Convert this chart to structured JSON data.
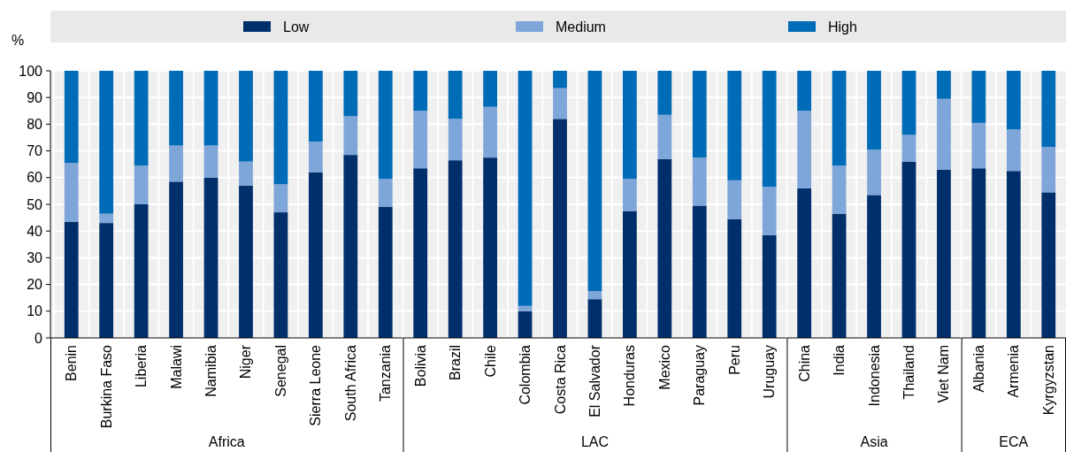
{
  "chart_data": [
    {
      "type": "bar",
      "stacked": true,
      "ylabel": "%",
      "xlabel": "Africa",
      "ylim": [
        0,
        100
      ],
      "yticks": [
        0,
        10,
        20,
        30,
        40,
        50,
        60,
        70,
        80,
        90,
        100
      ],
      "grid": true,
      "legend": "top",
      "categories": [
        "Benin",
        "Burkina Faso",
        "Liberia",
        "Malawi",
        "Namibia",
        "Niger",
        "Senegal",
        "Sierra Leone",
        "South Africa",
        "Tanzania"
      ],
      "series": [
        {
          "name": "Low",
          "color": "#002f6c",
          "values": [
            43.5,
            43,
            50,
            58.5,
            60,
            57,
            47,
            62,
            68.5,
            49
          ]
        },
        {
          "name": "Medium",
          "color": "#7fa6d9",
          "values": [
            22,
            3.5,
            14.5,
            13.5,
            12,
            9,
            10.5,
            11.5,
            14.5,
            10.5
          ]
        },
        {
          "name": "High",
          "color": "#006bb6",
          "values": [
            34.5,
            53.5,
            35.5,
            28,
            28,
            34,
            42.5,
            26.5,
            17,
            40.5
          ]
        }
      ]
    },
    {
      "type": "bar",
      "stacked": true,
      "xlabel": "LAC",
      "ylim": [
        0,
        100
      ],
      "yticks": [
        0,
        10,
        20,
        30,
        40,
        50,
        60,
        70,
        80,
        90,
        100
      ],
      "grid": true,
      "tick_labels": "x",
      "categories": [
        "Bolivia",
        "Brazil",
        "Chile",
        "Colombia",
        "Costa Rica",
        "El Salvador",
        "Honduras",
        "Mexico",
        "Paraguay",
        "Peru",
        "Uruguay"
      ],
      "series": [
        {
          "color": "#002f6c",
          "values": [
            63.5,
            66.5,
            67.5,
            10,
            82,
            14.5,
            47.5,
            67,
            49.5,
            44.5,
            38.5
          ]
        },
        {
          "color": "#7fa6d9",
          "values": [
            21.5,
            15.5,
            19,
            2,
            11.5,
            3,
            12,
            16.5,
            18,
            14.5,
            18
          ]
        },
        {
          "color": "#006bb6",
          "values": [
            15,
            18,
            13.5,
            88,
            6.5,
            82.5,
            40.5,
            16.5,
            32.5,
            41,
            43.5
          ]
        }
      ]
    },
    {
      "type": "bar",
      "stacked": true,
      "xlabel": "Asia",
      "ylim": [
        0,
        100
      ],
      "yticks": [
        0,
        10,
        20,
        30,
        40,
        50,
        60,
        70,
        80,
        90,
        100
      ],
      "grid": true,
      "tick_labels": "x",
      "categories": [
        "China",
        "India",
        "Indonesia",
        "Thailand",
        "Viet Nam"
      ],
      "series": [
        {
          "color": "#002f6c",
          "values": [
            56,
            46.5,
            53.5,
            66,
            63
          ]
        },
        {
          "color": "#7fa6d9",
          "values": [
            29,
            18,
            17,
            10,
            26.5
          ]
        },
        {
          "color": "#006bb6",
          "values": [
            15,
            35.5,
            29.5,
            24,
            10.5
          ]
        }
      ]
    },
    {
      "type": "bar",
      "stacked": true,
      "xlabel": "ECA",
      "ylim": [
        0,
        100
      ],
      "yticks": [
        0,
        10,
        20,
        30,
        40,
        50,
        60,
        70,
        80,
        90,
        100
      ],
      "grid": true,
      "tick_labels": "x",
      "categories": [
        "Albania",
        "Armenia",
        "Kyrgyzstan"
      ],
      "series": [
        {
          "color": "#002f6c",
          "values": [
            63.5,
            62.5,
            54.5
          ]
        },
        {
          "color": "#7fa6d9",
          "values": [
            17,
            15.5,
            17
          ]
        },
        {
          "color": "#006bb6",
          "values": [
            19.5,
            22,
            28.5
          ]
        }
      ]
    }
  ]
}
